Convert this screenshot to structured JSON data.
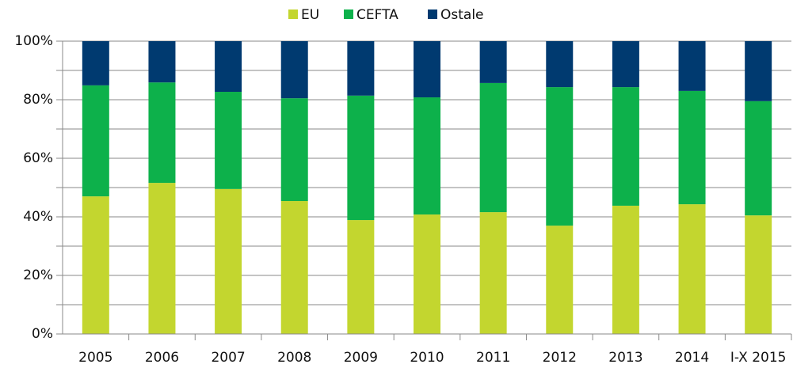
{
  "chart_data": {
    "type": "stacked_bar",
    "categories": [
      "2005",
      "2006",
      "2007",
      "2008",
      "2009",
      "2010",
      "2011",
      "2012",
      "2013",
      "2014",
      "I-X 2015"
    ],
    "series": [
      {
        "name": "EU",
        "color": "#c3d62f",
        "values": [
          47.0,
          51.6,
          49.5,
          45.4,
          38.9,
          40.8,
          41.6,
          37.0,
          43.8,
          44.3,
          40.5
        ]
      },
      {
        "name": "CEFTA",
        "color": "#0db14b",
        "values": [
          37.9,
          34.3,
          33.2,
          35.1,
          42.5,
          40.0,
          44.1,
          47.3,
          40.5,
          38.7,
          39.0
        ]
      },
      {
        "name": "Ostale",
        "color": "#003a70",
        "values": [
          15.1,
          14.1,
          17.3,
          19.5,
          18.6,
          19.2,
          14.3,
          15.7,
          15.7,
          17.0,
          20.5
        ]
      }
    ],
    "ylim": [
      0,
      100
    ],
    "yticks": [
      {
        "value": 0,
        "label": "0%"
      },
      {
        "value": 20,
        "label": "20%"
      },
      {
        "value": 40,
        "label": "40%"
      },
      {
        "value": 60,
        "label": "60%"
      },
      {
        "value": 80,
        "label": "80%"
      },
      {
        "value": 100,
        "label": "100%"
      }
    ],
    "minor_yticks": [
      10,
      30,
      50,
      70,
      90
    ],
    "grid": true,
    "legend": "top"
  }
}
